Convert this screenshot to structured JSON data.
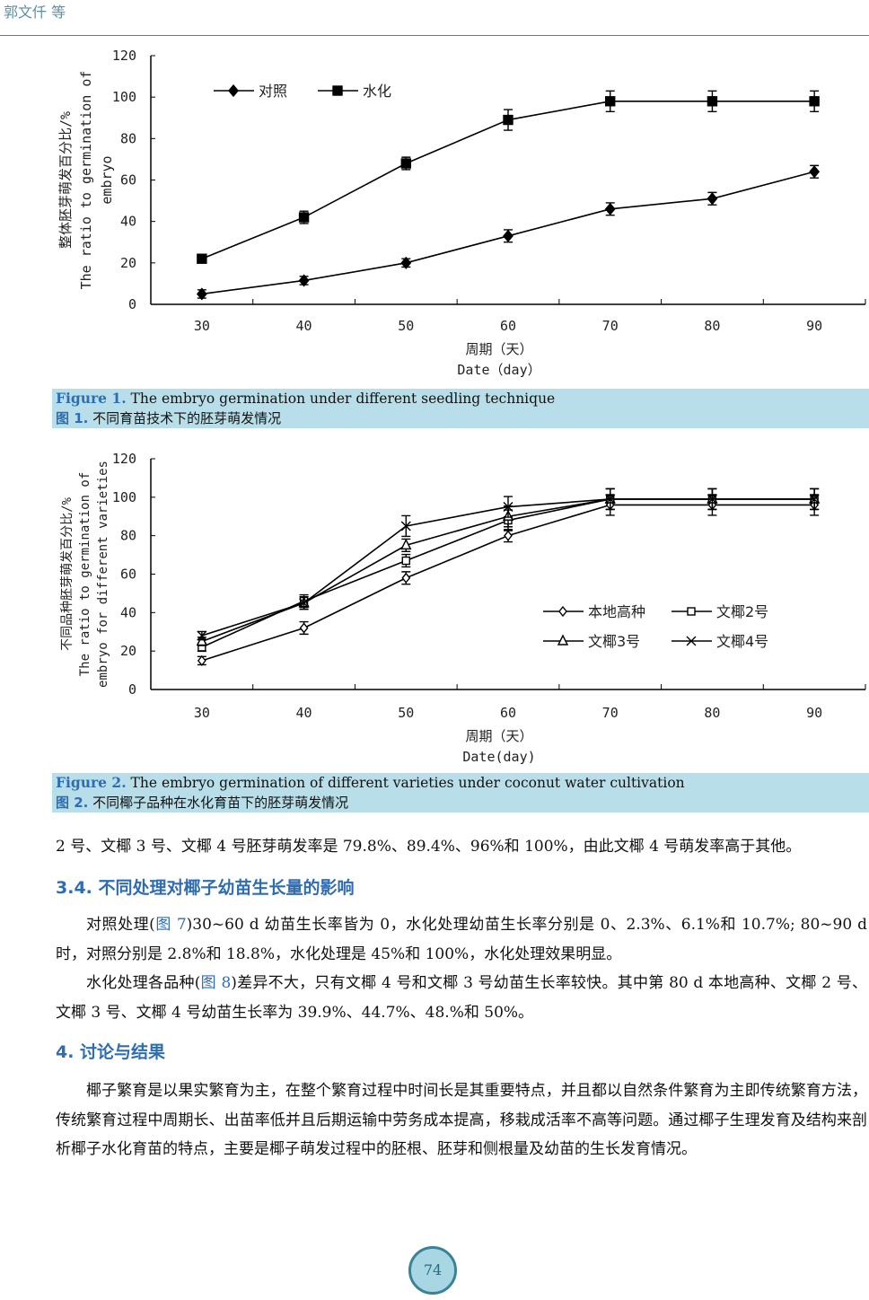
{
  "header": {
    "authors": "郭文仟  等"
  },
  "figures": [
    {
      "caption_en_label": "Figure 1.",
      "caption_en": " The embryo germination under different seedling technique",
      "caption_zh_label": "图 1.",
      "caption_zh": "  不同育苗技术下的胚芽萌发情况"
    },
    {
      "caption_en_label": "Figure 2.",
      "caption_en": " The embryo germination of different varieties under coconut water cultivation",
      "caption_zh_label": "图 2.",
      "caption_zh": "  不同椰子品种在水化育苗下的胚芽萌发情况"
    }
  ],
  "chart_data": [
    {
      "type": "line",
      "title": "",
      "xlabel": [
        "周期（天）",
        "Date（day）"
      ],
      "ylabel": [
        "整体胚芽萌发百分比/%",
        "The ratio to germination of",
        "embryo"
      ],
      "categories": [
        "30",
        "40",
        "50",
        "60",
        "70",
        "80",
        "90"
      ],
      "ylim": [
        0,
        120
      ],
      "yticks": [
        "0",
        "20",
        "40",
        "60",
        "80",
        "100",
        "120"
      ],
      "legend": "top-left",
      "series": [
        {
          "name": "对照",
          "marker": "diamond-filled",
          "values": [
            5,
            11.5,
            20,
            33,
            46,
            51,
            64
          ]
        },
        {
          "name": "水化",
          "marker": "square-filled",
          "values": [
            22,
            42,
            68,
            89,
            98,
            98,
            98
          ]
        }
      ]
    },
    {
      "type": "line",
      "title": "",
      "xlabel": [
        "周期（天）",
        "Date(day)"
      ],
      "ylabel": [
        "不同品种胚芽萌发百分比/%",
        "The ratio to germination of",
        "embryo for different varieties"
      ],
      "categories": [
        "30",
        "40",
        "50",
        "60",
        "70",
        "80",
        "90"
      ],
      "ylim": [
        0,
        120
      ],
      "yticks": [
        "0",
        "20",
        "40",
        "60",
        "80",
        "100",
        "120"
      ],
      "legend": "bottom-right",
      "series": [
        {
          "name": "本地高种",
          "marker": "diamond-open",
          "values": [
            15,
            32,
            58,
            80,
            96,
            96,
            96
          ]
        },
        {
          "name": "文椰2号",
          "marker": "square-open",
          "values": [
            22,
            46,
            67,
            88,
            99,
            99,
            99
          ]
        },
        {
          "name": "文椰3号",
          "marker": "triangle-open",
          "values": [
            25,
            45,
            75,
            90,
            99,
            99,
            99
          ]
        },
        {
          "name": "文椰4号",
          "marker": "x",
          "values": [
            28,
            45,
            85,
            95,
            99,
            99,
            99
          ]
        }
      ]
    }
  ],
  "body": {
    "p0": "2 号、文椰 3 号、文椰 4 号胚芽萌发率是 79.8%、89.4%、96%和 100%，由此文椰 4 号萌发率高于其他。",
    "h1": "3.4.  不同处理对椰子幼苗生长量的影响",
    "p1a": "对照处理(",
    "p1link": "图 7",
    "p1b": ")30~60 d 幼苗生长率皆为 0，水化处理幼苗生长率分别是 0、2.3%、6.1%和 10.7%; 80~90 d 时，对照分别是 2.8%和 18.8%，水化处理是 45%和 100%，水化处理效果明显。",
    "p2a": "水化处理各品种(",
    "p2link": "图 8",
    "p2b": ")差异不大，只有文椰 4 号和文椰 3 号幼苗生长率较快。其中第 80 d 本地高种、文椰 2 号、文椰 3 号、文椰 4 号幼苗生长率为 39.9%、44.7%、48.%和 50%。",
    "h2": "4.  讨论与结果",
    "p3": "椰子繁育是以果实繁育为主，在整个繁育过程中时间长是其重要特点，并且都以自然条件繁育为主即传统繁育方法，传统繁育过程中周期长、出苗率低并且后期运输中劳务成本提高，移栽成活率不高等问题。通过椰子生理发育及结构来剖析椰子水化育苗的特点，主要是椰子萌发过程中的胚根、胚芽和侧根量及幼苗的生长发育情况。"
  },
  "footer": {
    "page_number": "74"
  }
}
